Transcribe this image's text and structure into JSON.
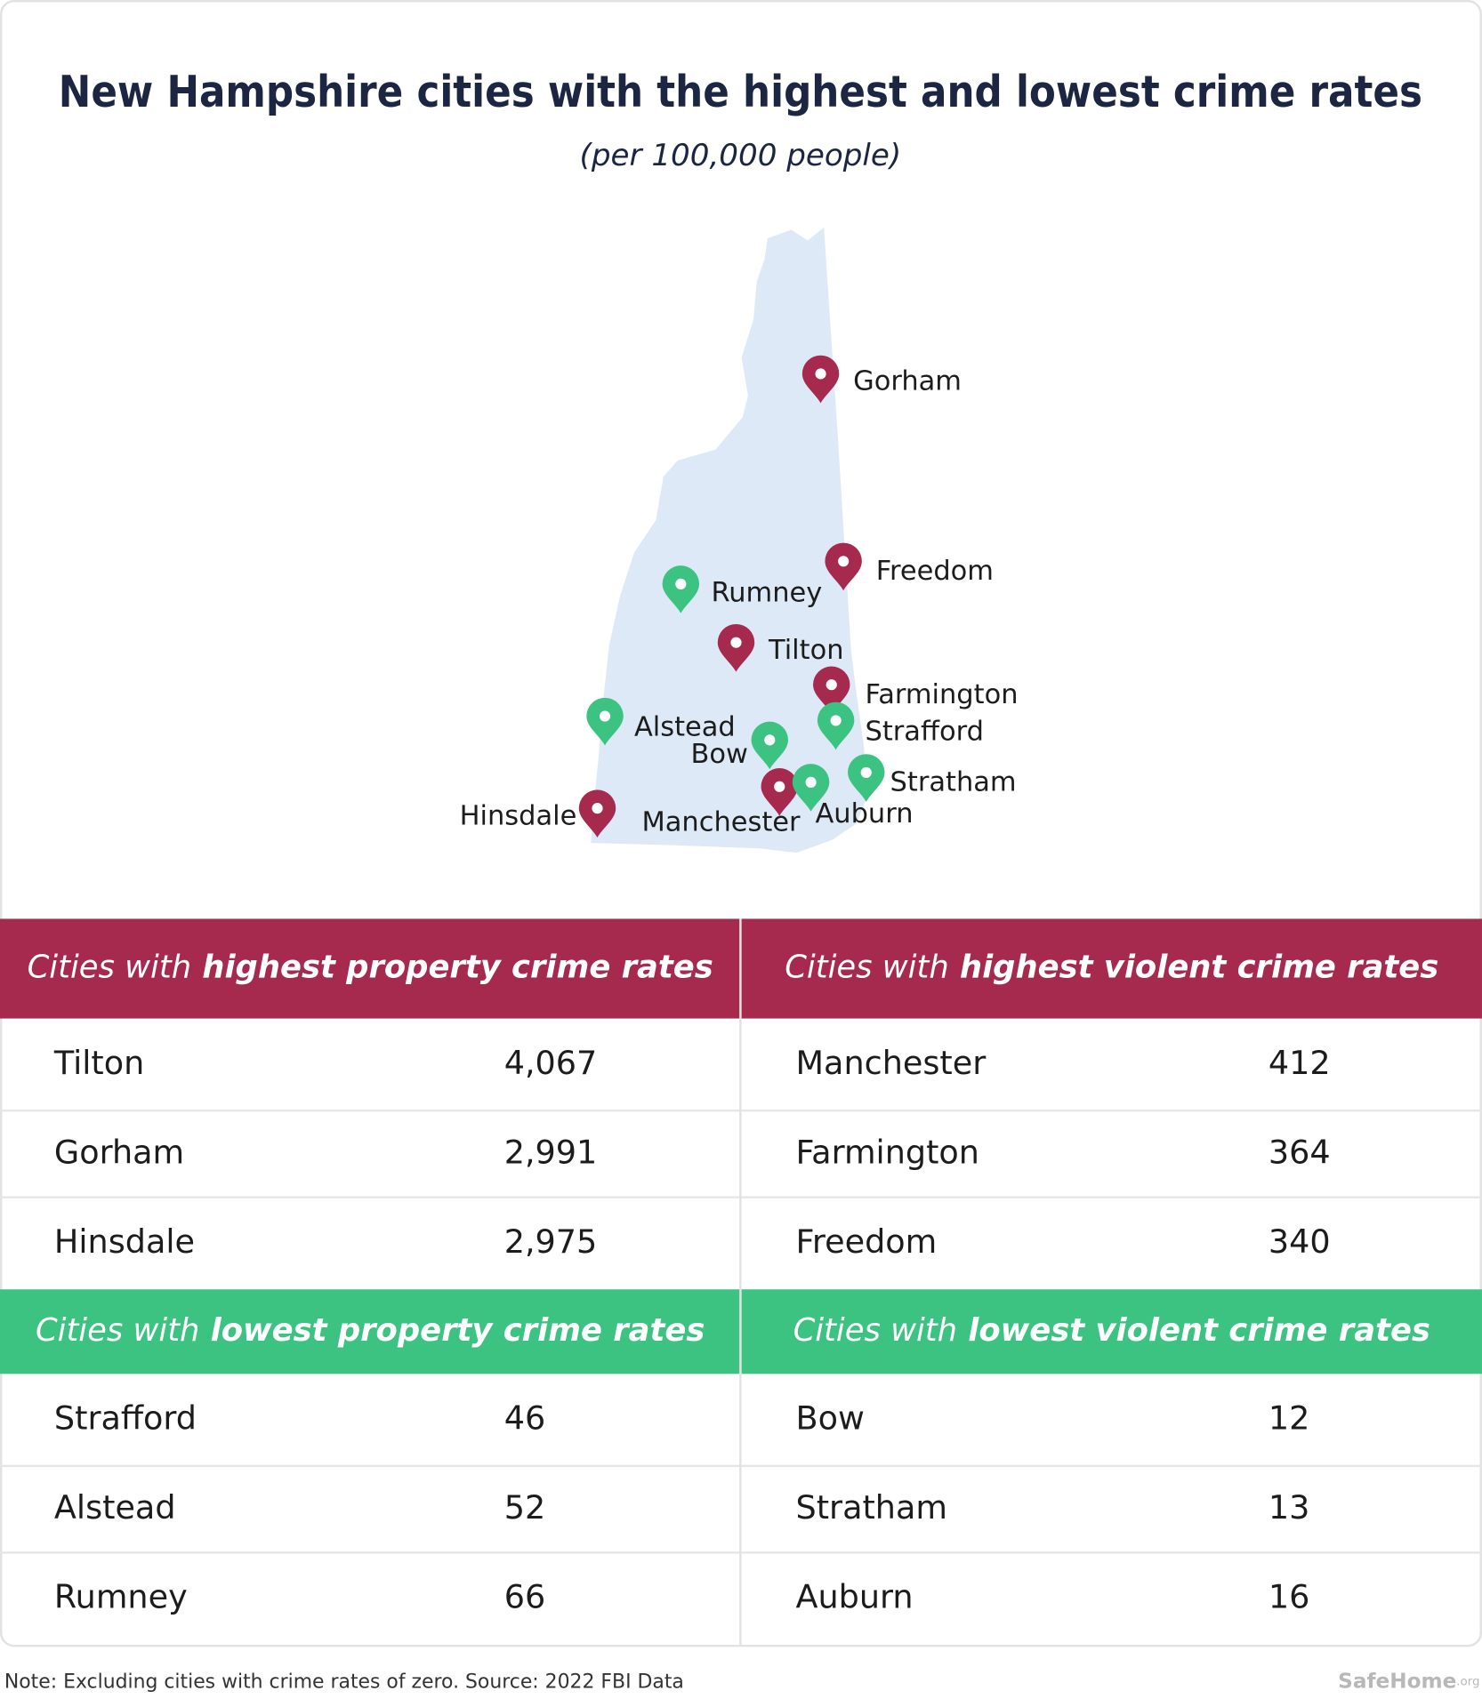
{
  "header": {
    "title": "New Hampshire cities with the highest and lowest crime rates",
    "subtitle": "(per 100,000 people)"
  },
  "map": {
    "pins": [
      "Gorham",
      "Freedom",
      "Rumney",
      "Tilton",
      "Farmington",
      "Strafford",
      "Alstead",
      "Bow",
      "Stratham",
      "Manchester",
      "Auburn",
      "Hinsdale"
    ]
  },
  "tables": [
    {
      "heading_lead": "Cities with",
      "heading_emphasis": "highest property crime rates",
      "rows": [
        [
          "Tilton",
          "4,067"
        ],
        [
          "Gorham",
          "2,991"
        ],
        [
          "Hinsdale",
          "2,975"
        ]
      ]
    },
    {
      "heading_lead": "Cities with",
      "heading_emphasis": "highest violent crime rates",
      "rows": [
        [
          "Manchester",
          "412"
        ],
        [
          "Farmington",
          "364"
        ],
        [
          "Freedom",
          "340"
        ]
      ]
    },
    {
      "heading_lead": "Cities with",
      "heading_emphasis": "lowest property crime rates",
      "rows": [
        [
          "Strafford",
          "46"
        ],
        [
          "Alstead",
          "52"
        ],
        [
          "Rumney",
          "66"
        ]
      ]
    },
    {
      "heading_lead": "Cities with",
      "heading_emphasis": "lowest violent crime rates",
      "rows": [
        [
          "Bow",
          "12"
        ],
        [
          "Stratham",
          "13"
        ],
        [
          "Auburn",
          "16"
        ]
      ]
    }
  ],
  "footer": {
    "note": "Note: Excluding cities with crime rates of zero. Source: 2022 FBI Data",
    "brand": "SafeHome",
    "brand_suffix": ".org"
  }
}
